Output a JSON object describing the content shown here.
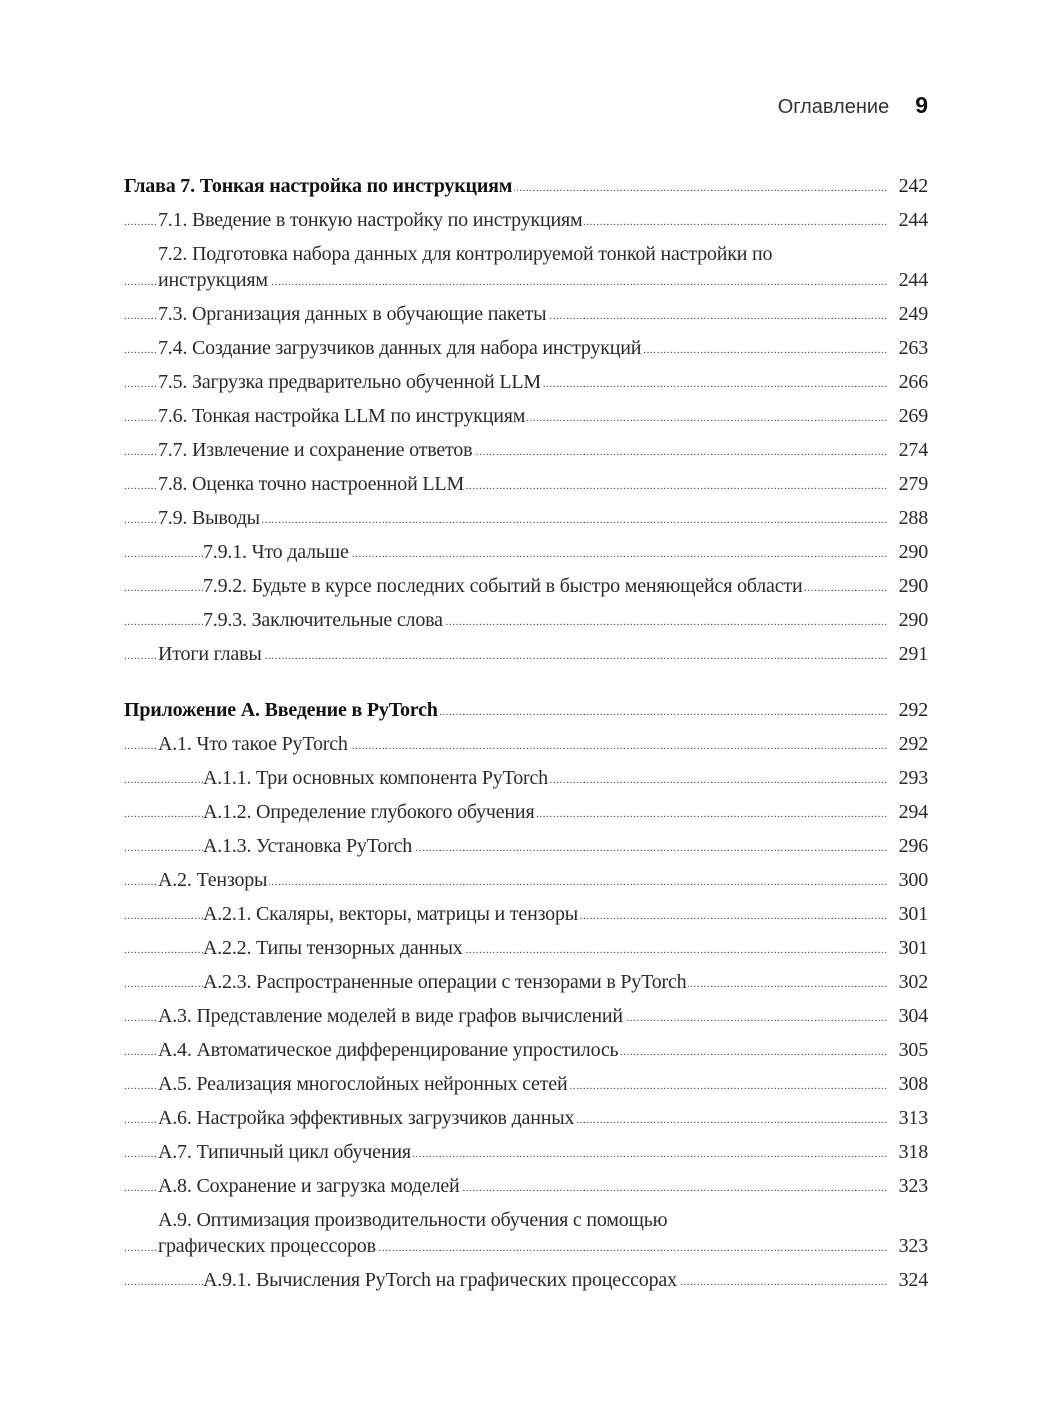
{
  "header": {
    "title": "Оглавление",
    "page_number": "9"
  },
  "toc": [
    {
      "level": 0,
      "title": "Глава 7. Тонкая настройка по инструкциям",
      "page": "242"
    },
    {
      "level": 1,
      "title": "7.1. Введение в тонкую настройку по инструкциям",
      "page": "244"
    },
    {
      "level": 1,
      "title": "7.2. Подготовка набора данных для контролируемой тонкой настройки по инструкциям",
      "page": "244",
      "lines": 2
    },
    {
      "level": 1,
      "title": "7.3. Организация данных в обучающие пакеты",
      "page": "249"
    },
    {
      "level": 1,
      "title": "7.4. Создание загрузчиков данных для набора инструкций",
      "page": "263"
    },
    {
      "level": 1,
      "title": "7.5. Загрузка предварительно обученной LLM",
      "page": "266"
    },
    {
      "level": 1,
      "title": "7.6. Тонкая настройка LLM по инструкциям",
      "page": "269"
    },
    {
      "level": 1,
      "title": "7.7. Извлечение и сохранение ответов",
      "page": "274"
    },
    {
      "level": 1,
      "title": "7.8. Оценка точно настроенной LLM",
      "page": "279"
    },
    {
      "level": 1,
      "title": "7.9. Выводы",
      "page": "288"
    },
    {
      "level": 2,
      "title": "7.9.1. Что дальше",
      "page": "290"
    },
    {
      "level": 2,
      "title": "7.9.2. Будьте в курсе последних событий в быстро меняющейся области",
      "page": "290",
      "lines": 2
    },
    {
      "level": 2,
      "title": "7.9.3. Заключительные слова",
      "page": "290"
    },
    {
      "level": 1,
      "title": "Итоги главы",
      "page": "291"
    },
    {
      "level": 0,
      "title": "Приложение А. Введение в PyTorch",
      "page": "292",
      "gap": true
    },
    {
      "level": 1,
      "title": "А.1. Что такое PyTorch",
      "page": "292"
    },
    {
      "level": 2,
      "title": "А.1.1. Три основных компонента PyTorch",
      "page": "293"
    },
    {
      "level": 2,
      "title": "А.1.2. Определение глубокого обучения",
      "page": "294"
    },
    {
      "level": 2,
      "title": "А.1.3. Установка PyTorch",
      "page": "296"
    },
    {
      "level": 1,
      "title": "А.2. Тензоры",
      "page": "300"
    },
    {
      "level": 2,
      "title": "А.2.1. Скаляры, векторы, матрицы и тензоры",
      "page": "301"
    },
    {
      "level": 2,
      "title": "А.2.2. Типы тензорных данных",
      "page": "301"
    },
    {
      "level": 2,
      "title": "А.2.3. Распространенные операции с тензорами в PyTorch",
      "page": "302"
    },
    {
      "level": 1,
      "title": "А.3. Представление моделей в виде графов вычислений",
      "page": "304"
    },
    {
      "level": 1,
      "title": "А.4. Автоматическое дифференцирование упростилось",
      "page": "305"
    },
    {
      "level": 1,
      "title": "А.5. Реализация многослойных нейронных сетей",
      "page": "308"
    },
    {
      "level": 1,
      "title": "А.6. Настройка эффективных загрузчиков данных",
      "page": "313"
    },
    {
      "level": 1,
      "title": "А.7. Типичный цикл обучения",
      "page": "318"
    },
    {
      "level": 1,
      "title": "А.8. Сохранение и загрузка моделей",
      "page": "323"
    },
    {
      "level": 1,
      "title": "А.9. Оптимизация производительности обучения с помощью графических процессоров",
      "page": "323",
      "lines": 2
    },
    {
      "level": 2,
      "title": "А.9.1. Вычисления PyTorch на графических процессорах",
      "page": "324"
    }
  ]
}
